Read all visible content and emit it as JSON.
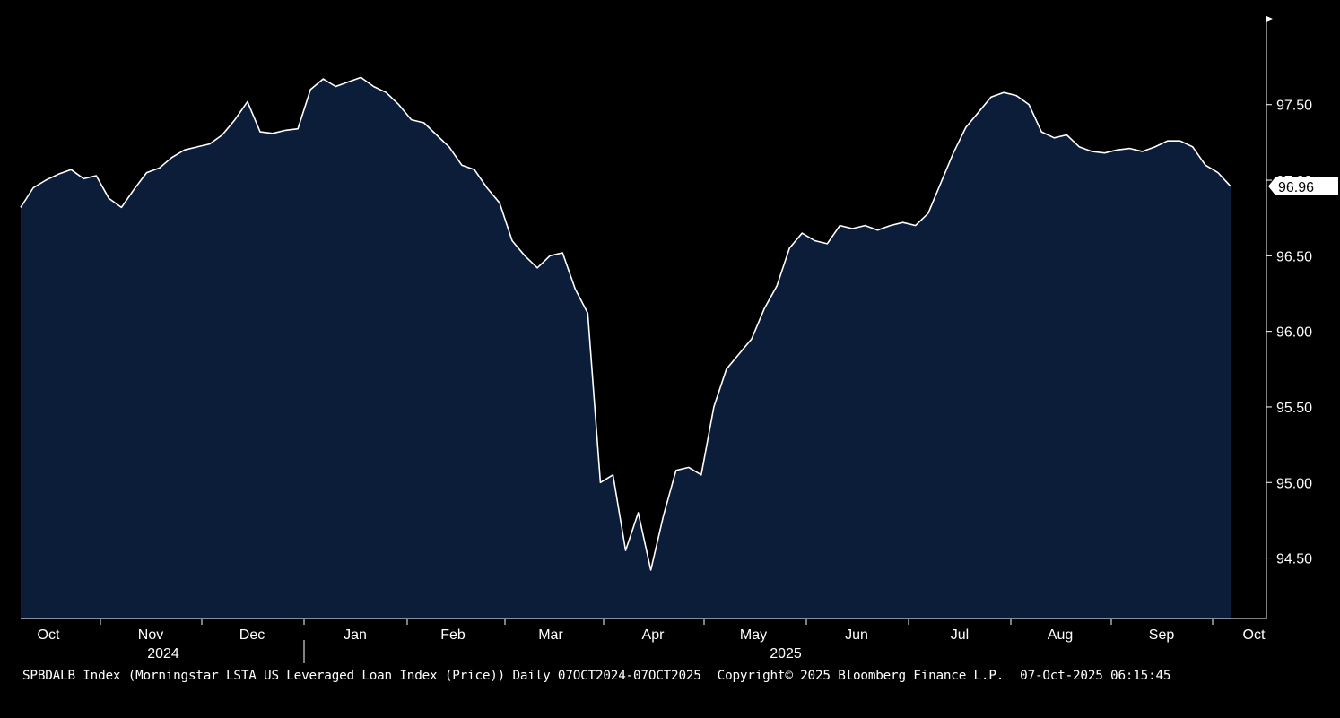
{
  "chart_data": {
    "type": "area",
    "title": "",
    "xlabel": "",
    "ylabel": "",
    "ylim": [
      94.1,
      98.05
    ],
    "y_ticks": [
      "94.50",
      "95.00",
      "95.50",
      "96.00",
      "96.50",
      "97.00",
      "97.50"
    ],
    "x_ticks": [
      "Oct",
      "Nov",
      "Dec",
      "Jan",
      "Feb",
      "Mar",
      "Apr",
      "May",
      "Jun",
      "Jul",
      "Aug",
      "Sep",
      "Oct"
    ],
    "year_labels": [
      "2024",
      "2025"
    ],
    "last_value_label": "96.96",
    "grid": false,
    "legend": "none",
    "series": [
      {
        "values": [
          96.82,
          96.95,
          97.0,
          97.04,
          97.07,
          97.01,
          97.03,
          96.88,
          96.82,
          96.94,
          97.05,
          97.08,
          97.15,
          97.2,
          97.22,
          97.24,
          97.3,
          97.4,
          97.52,
          97.32,
          97.31,
          97.33,
          97.34,
          97.6,
          97.67,
          97.62,
          97.65,
          97.68,
          97.62,
          97.58,
          97.5,
          97.4,
          97.38,
          97.3,
          97.22,
          97.1,
          97.07,
          96.95,
          96.85,
          96.6,
          96.5,
          96.42,
          96.5,
          96.52,
          96.28,
          96.12,
          95.0,
          95.05,
          94.55,
          94.8,
          94.42,
          94.78,
          95.08,
          95.1,
          95.05,
          95.5,
          95.75,
          95.85,
          95.95,
          96.15,
          96.3,
          96.55,
          96.65,
          96.6,
          96.58,
          96.7,
          96.68,
          96.7,
          96.67,
          96.7,
          96.72,
          96.7,
          96.78,
          96.98,
          97.18,
          97.35,
          97.45,
          97.55,
          97.58,
          97.56,
          97.5,
          97.32,
          97.28,
          97.3,
          97.22,
          97.19,
          97.18,
          97.2,
          97.21,
          97.19,
          97.22,
          97.26,
          97.26,
          97.22,
          97.1,
          97.05,
          96.96
        ]
      }
    ]
  },
  "colors": {
    "background": "#000000",
    "plot_fill": "#0c1d3a",
    "line": "#ffffff",
    "text": "#ffffff"
  },
  "footer": {
    "description": "SPBDALB Index (Morningstar LSTA US Leveraged Loan Index (Price)) Daily 07OCT2024-07OCT2025",
    "copyright": "Copyright© 2025 Bloomberg Finance L.P.",
    "timestamp": "07-Oct-2025 06:15:45"
  }
}
